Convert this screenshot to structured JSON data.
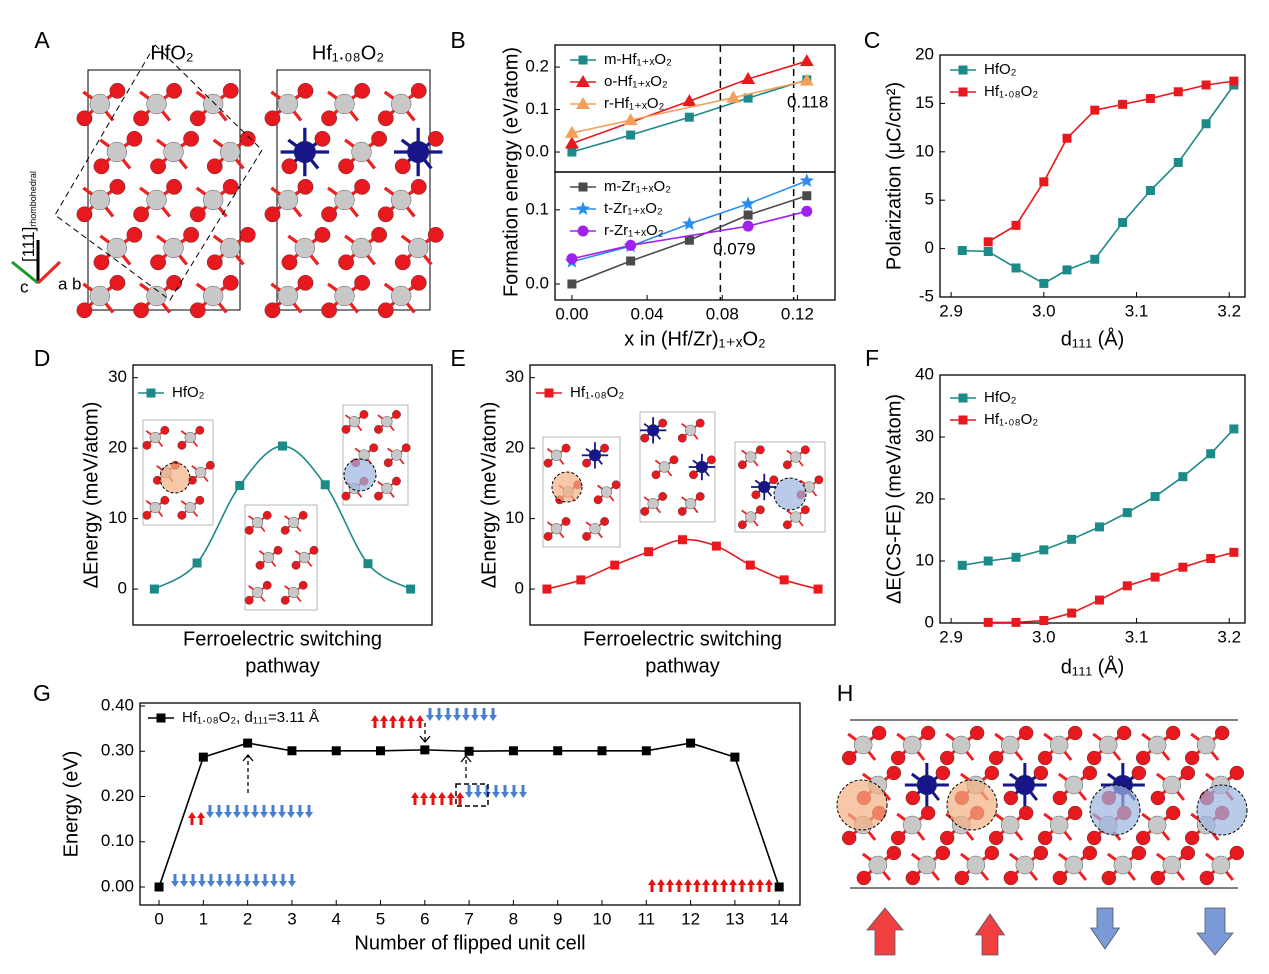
{
  "chart_data": [
    {
      "type": "structure",
      "panel": "A",
      "labels": [
        "HfO₂",
        "Hf₁.₀₈O₂"
      ],
      "axis_labels": [
        "[111]",
        "rhombohedral",
        "c",
        "a",
        "b"
      ]
    },
    {
      "type": "line",
      "panel": "B",
      "ylabel": "Formation energy (eV/atom)",
      "legend": "upper left",
      "xlim": [
        -0.009,
        0.14
      ],
      "ylim": [
        -0.047,
        0.252
      ],
      "yticks": [
        {
          "value": 0,
          "label": "0.0"
        },
        {
          "value": 0.1,
          "label": "0.1"
        },
        {
          "value": 0.2,
          "label": "0.2"
        }
      ],
      "vlines": [
        0.118
      ],
      "series": [
        {
          "name": "m-Hf₁₊ₓO₂",
          "color": "#1b8a88",
          "marker": "square",
          "x": [
            0,
            0.03125,
            0.0625,
            0.09375,
            0.125
          ],
          "values": [
            0,
            0.04,
            0.082,
            0.127,
            0.17
          ]
        },
        {
          "name": "o-Hf₁₊ₓO₂",
          "color": "#e8191e",
          "marker": "triangle",
          "x": [
            0,
            0.0625,
            0.09375,
            0.125
          ],
          "values": [
            0.02,
            0.12,
            0.172,
            0.214
          ]
        },
        {
          "name": "r-Hf₁₊ₓO₂",
          "color": "#f5a05a",
          "marker": "triangle",
          "x": [
            0,
            0.03125,
            0.0859,
            0.125
          ],
          "values": [
            0.045,
            0.075,
            0.128,
            0.168
          ]
        }
      ]
    },
    {
      "type": "line",
      "xlabel": "x in (Hf/Zr)₁₊ₓO₂",
      "legend": "upper left",
      "xlim": [
        -0.009,
        0.14
      ],
      "ylim": [
        -0.0216,
        0.151
      ],
      "xticks": [
        {
          "value": 0,
          "label": "0.00"
        },
        {
          "value": 0.04,
          "label": "0.04"
        },
        {
          "value": 0.08,
          "label": "0.08"
        },
        {
          "value": 0.12,
          "label": "0.12"
        }
      ],
      "yticks": [
        {
          "value": 0,
          "label": "0.0"
        },
        {
          "value": 0.1,
          "label": "0.1"
        }
      ],
      "vlines": [
        0.079
      ],
      "series": [
        {
          "name": "m-Zr₁₊ₓO₂",
          "color": "#4a4a4a",
          "marker": "square",
          "x": [
            0,
            0.03125,
            0.0625,
            0.09375,
            0.125
          ],
          "values": [
            0,
            0.031,
            0.059,
            0.093,
            0.119
          ]
        },
        {
          "name": "t-Zr₁₊ₓO₂",
          "color": "#2a8cf0",
          "marker": "star",
          "x": [
            0,
            0.03125,
            0.0625,
            0.09375,
            0.125
          ],
          "values": [
            0.03,
            0.051,
            0.081,
            0.108,
            0.139
          ]
        },
        {
          "name": "r-Zr₁₊ₓO₂",
          "color": "#a020f0",
          "marker": "circle",
          "x": [
            0,
            0.03125,
            0.09375,
            0.125
          ],
          "values": [
            0.034,
            0.052,
            0.078,
            0.098
          ]
        }
      ]
    },
    {
      "type": "line",
      "panel": "C",
      "ylabel": "Polarization (μC/cm²)",
      "xlabel": "d₁₁₁ (Å)",
      "legend": "upper left",
      "xlim": [
        2.888,
        3.217
      ],
      "ylim": [
        -5,
        20
      ],
      "xticks": [
        2.9,
        {
          "value": 3,
          "label": "3.0"
        },
        3.1,
        3.2
      ],
      "yticks": [
        -5,
        0,
        5,
        10,
        15,
        20
      ],
      "series": [
        {
          "name": "HfO₂",
          "color": "#1b8a88",
          "marker": "square",
          "x": [
            2.912,
            2.94,
            2.97,
            3.0,
            3.025,
            3.055,
            3.085,
            3.115,
            3.145,
            3.175,
            3.205
          ],
          "values": [
            -0.2,
            -0.3,
            -2,
            -3.6,
            -2.2,
            -1.1,
            2.7,
            6,
            8.9,
            12.9,
            16.9
          ]
        },
        {
          "name": "Hf₁.₀₈O₂",
          "color": "#e8191e",
          "marker": "square",
          "x": [
            2.94,
            2.97,
            3.0,
            3.025,
            3.055,
            3.085,
            3.115,
            3.145,
            3.175,
            3.205
          ],
          "values": [
            0.7,
            2.4,
            6.9,
            11.4,
            14.3,
            14.9,
            15.5,
            16.2,
            16.9,
            17.3
          ]
        }
      ]
    },
    {
      "type": "line",
      "panel": "D",
      "ylabel": "ΔEnergy (meV/atom)",
      "xlabel": [
        "Ferroelectric switching",
        "pathway"
      ],
      "legend": "upper left",
      "smooth": true,
      "categories": [
        null,
        null,
        null,
        null,
        null,
        null,
        null
      ],
      "ylim": [
        -5.1,
        31.8
      ],
      "yticks": [
        0,
        10,
        20,
        30
      ],
      "series": [
        {
          "name": "HfO₂",
          "color": "#1b8a88",
          "marker": "square",
          "values": [
            0,
            3.7,
            14.7,
            20.3,
            14.8,
            3.6,
            0
          ]
        }
      ]
    },
    {
      "type": "line",
      "panel": "E",
      "ylabel": "ΔEnergy (meV/atom)",
      "xlabel": [
        "Ferroelectric switching",
        "pathway"
      ],
      "legend": "upper left",
      "smooth": true,
      "categories": [
        null,
        null,
        null,
        null,
        null,
        null,
        null,
        null,
        null
      ],
      "ylim": [
        -5.1,
        31.8
      ],
      "yticks": [
        0,
        10,
        20,
        30
      ],
      "series": [
        {
          "name": "Hf₁.₀₈O₂",
          "color": "#e8191e",
          "marker": "square",
          "values": [
            0,
            1.3,
            3.4,
            5.3,
            7.0,
            6.1,
            3.4,
            1.3,
            0
          ]
        }
      ]
    },
    {
      "type": "line",
      "panel": "F",
      "ylabel": "ΔE(CS-FE) (meV/atom)",
      "xlabel": "d₁₁₁ (Å)",
      "legend": "upper left",
      "xlim": [
        2.888,
        3.217
      ],
      "ylim": [
        0,
        40
      ],
      "xticks": [
        2.9,
        {
          "value": 3,
          "label": "3.0"
        },
        3.1,
        3.2
      ],
      "yticks": [
        0,
        10,
        20,
        30,
        40
      ],
      "series": [
        {
          "name": "HfO₂",
          "color": "#1b8a88",
          "marker": "square",
          "x": [
            2.912,
            2.94,
            2.97,
            3.0,
            3.03,
            3.06,
            3.09,
            3.12,
            3.15,
            3.18,
            3.205
          ],
          "values": [
            9.3,
            10,
            10.6,
            11.8,
            13.5,
            15.5,
            17.8,
            20.4,
            23.6,
            27.3,
            31.3
          ]
        },
        {
          "name": "Hf₁.₀₈O₂",
          "color": "#e8191e",
          "marker": "square",
          "x": [
            2.94,
            2.97,
            3.0,
            3.03,
            3.06,
            3.09,
            3.12,
            3.15,
            3.18,
            3.205
          ],
          "values": [
            0.1,
            0.1,
            0.4,
            1.6,
            3.7,
            6.0,
            7.4,
            9.0,
            10.4,
            11.4
          ]
        }
      ]
    },
    {
      "type": "line",
      "panel": "G",
      "ylabel": "Energy (eV)",
      "xlabel": "Number of flipped unit cell",
      "legend": "upper left",
      "x": [
        0,
        1,
        2,
        3,
        4,
        5,
        6,
        7,
        8,
        9,
        10,
        11,
        12,
        13,
        14
      ],
      "xlim": [
        -0.43,
        14.47
      ],
      "ylim": [
        -0.0398,
        0.4066
      ],
      "xticks": [
        0,
        1,
        2,
        3,
        4,
        5,
        6,
        7,
        8,
        9,
        10,
        11,
        12,
        13,
        14
      ],
      "yticks": [
        {
          "value": 0,
          "label": "0.00"
        },
        {
          "value": 0.1,
          "label": "0.10"
        },
        {
          "value": 0.2,
          "label": "0.20"
        },
        {
          "value": 0.3,
          "label": "0.30"
        },
        {
          "value": 0.4,
          "label": "0.40"
        }
      ],
      "series": [
        {
          "name": "Hf₁.₀₈O₂, d₁₁₁=3.11 Å",
          "color": "#000000",
          "marker": "square",
          "values": [
            0,
            0.287,
            0.318,
            0.301,
            0.301,
            0.301,
            0.303,
            0.3,
            0.301,
            0.301,
            0.301,
            0.301,
            0.318,
            0.287,
            0
          ]
        }
      ]
    },
    {
      "type": "structure",
      "panel": "H"
    }
  ]
}
